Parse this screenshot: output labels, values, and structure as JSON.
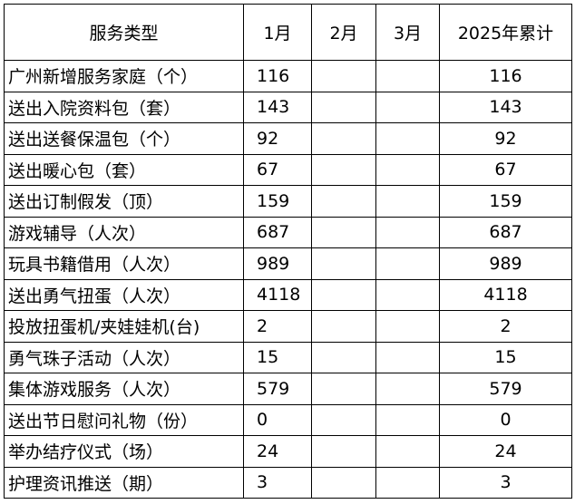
{
  "table": {
    "header": [
      "服务类型",
      "1月",
      "2月",
      "3月",
      "2025年累计"
    ],
    "rows": [
      {
        "item": "广州新增服务家庭（个）",
        "jan": 116,
        "total": 116
      },
      {
        "item": "送出入院资料包（套）",
        "jan": 143,
        "total": 143
      },
      {
        "item": "送出送餐保温包（个）",
        "jan": 92,
        "total": 92
      },
      {
        "item": "送出暖心包（套）",
        "jan": 67,
        "total": 67
      },
      {
        "item": "送出订制假发（顶）",
        "jan": 159,
        "total": 159
      },
      {
        "item": "游戏辅导（人次）",
        "jan": 687,
        "total": 687
      },
      {
        "item": "玩具书籍借用（人次）",
        "jan": 989,
        "total": 989
      },
      {
        "item": "送出勇气扭蛋（人次）",
        "jan": 4118,
        "total": 4118
      },
      {
        "item": "投放扭蛋机/夹娃娃机(台)",
        "jan": 2,
        "total": 2
      },
      {
        "item": "勇气珠子活动（人次）",
        "jan": 15,
        "total": 15
      },
      {
        "item": "集体游戏服务（人次）",
        "jan": 579,
        "total": 579
      },
      {
        "item": "送出节日慰问礼物（份）",
        "jan": 0,
        "total": 0
      },
      {
        "item": "举办结疗仪式（场）",
        "jan": 24,
        "total": 24
      },
      {
        "item": "护理资讯推送（期）",
        "jan": 3,
        "total": 3
      }
    ]
  }
}
